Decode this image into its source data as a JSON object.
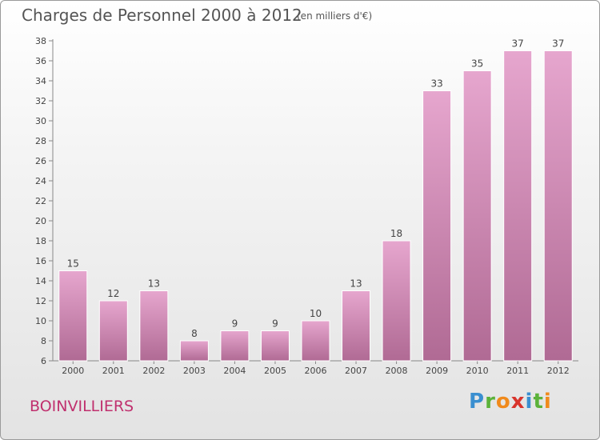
{
  "title": "Charges de Personnel 2000 à 2012",
  "subtitle": "(en milliers d'€)",
  "place": "BOINVILLIERS",
  "logo": "Proxiti",
  "colors": {
    "bar_top": "#e6a6ce",
    "bar_bottom": "#b06a94",
    "axis": "#888888",
    "text": "#444444",
    "place": "#c0306e"
  },
  "chart_data": {
    "type": "bar",
    "categories": [
      "2000",
      "2001",
      "2002",
      "2003",
      "2004",
      "2005",
      "2006",
      "2007",
      "2008",
      "2009",
      "2010",
      "2011",
      "2012"
    ],
    "values": [
      15,
      12,
      13,
      8,
      9,
      9,
      10,
      13,
      18,
      33,
      35,
      37,
      37
    ],
    "title": "Charges de Personnel 2000 à 2012",
    "subtitle": "(en milliers d'€)",
    "xlabel": "",
    "ylabel": "",
    "ylim": [
      6,
      38
    ],
    "yticks": [
      6,
      8,
      10,
      12,
      14,
      16,
      18,
      20,
      22,
      24,
      26,
      28,
      30,
      32,
      34,
      36,
      38
    ],
    "grid": false,
    "legend": "none"
  }
}
